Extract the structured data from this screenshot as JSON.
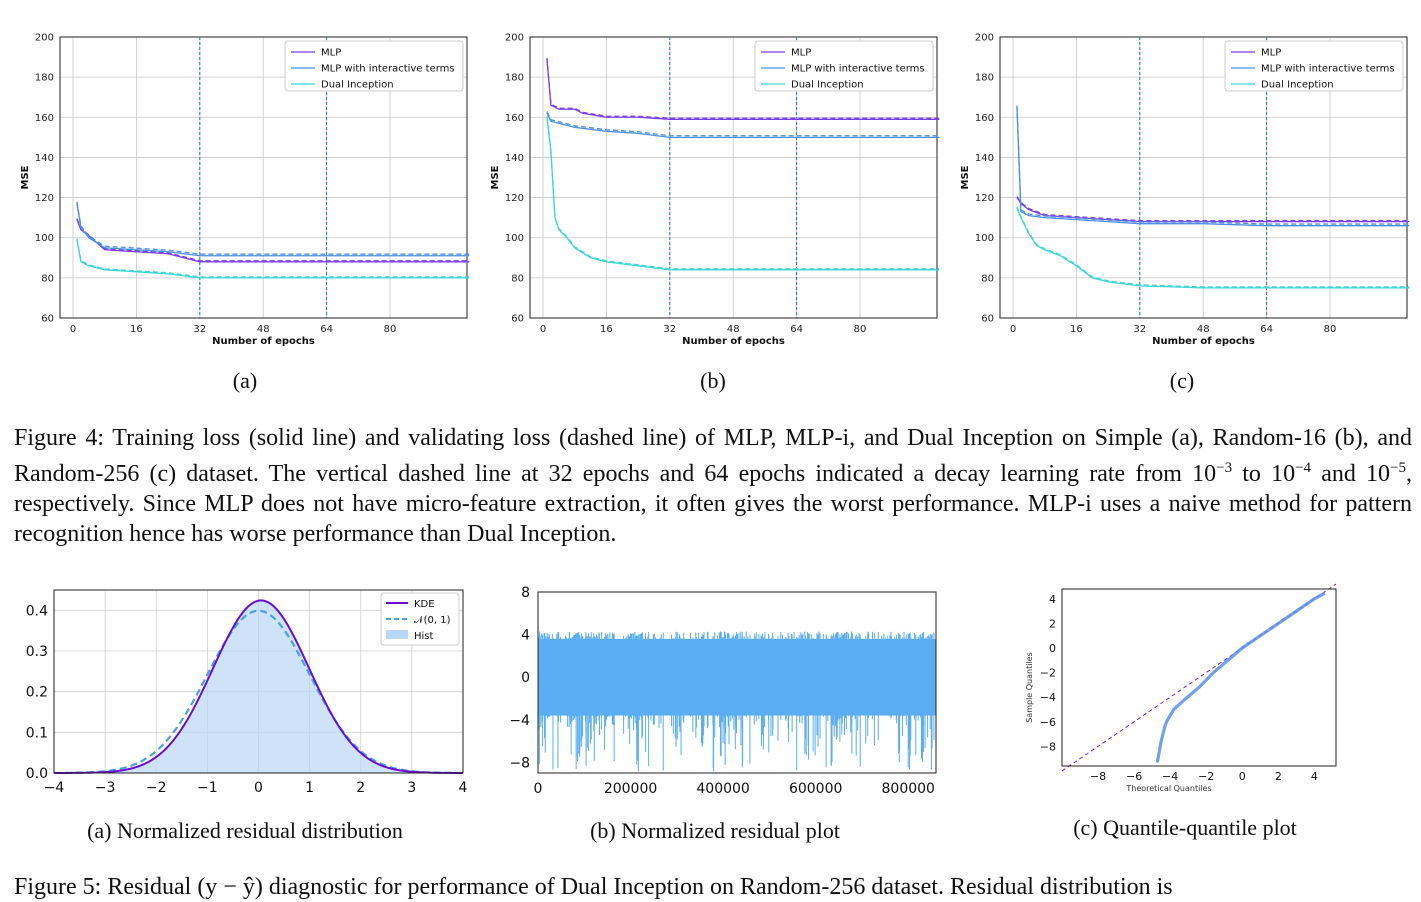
{
  "figure4": {
    "caption_parts": [
      "Figure 4: Training loss (solid line) and validating loss (dashed line) of MLP, MLP-i, and Dual Inception on Simple (a), Random-16 (b), and Random-256 (c) dataset. The vertical dashed line at 32 epochs and 64 epochs indicated a decay learning rate from ",
      "10",
      "−3",
      " to ",
      "10",
      "−4",
      " and ",
      "10",
      "−5",
      ", respectively. Since MLP does not have micro-feature extraction, it often gives the worst performance. MLP-i uses a naive method for pattern recognition hence has worse performance than Dual Inception."
    ],
    "ylabel": "MSE",
    "xlabel": "Number of epochs",
    "legend": [
      "MLP",
      "MLP with interactive terms",
      "Dual Inception"
    ],
    "colors": {
      "mlp": "#7b3ff2",
      "mlpi": "#4a90e2",
      "dual": "#3ed6d6",
      "vline": "#1f77b4"
    }
  },
  "figure5": {
    "sublabels": [
      "(a) Normalized residual distribution",
      "(b) Normalized residual plot",
      "(c) Quantile-quantile plot"
    ],
    "caption_start": "Figure 5: Residual (y − ŷ) diagnostic for performance of Dual Inception on Random-256 dataset. Residual distribution is",
    "kde_legend": [
      "KDE",
      "𝒩(0, 1)",
      "Hist"
    ],
    "qq_xlabel": "Theoretical Quantiles",
    "qq_ylabel": "Sample Quantiles"
  },
  "chart_data": [
    {
      "type": "line",
      "label": "(a)",
      "xlabel": "Number of epochs",
      "ylabel": "MSE",
      "ylim": [
        60,
        200
      ],
      "x_ticks": [
        0,
        16,
        32,
        48,
        64,
        80
      ],
      "y_ticks": [
        60,
        80,
        100,
        120,
        140,
        160,
        180,
        200
      ],
      "vlines": [
        32,
        64
      ],
      "grid": true,
      "legend": "top-right",
      "series": [
        {
          "name": "MLP",
          "x": [
            1,
            2,
            4,
            8,
            16,
            24,
            32,
            48,
            64,
            80,
            100
          ],
          "y": [
            109,
            104,
            101,
            94,
            93,
            92,
            88,
            88,
            88,
            88,
            88
          ]
        },
        {
          "name": "MLP with interactive terms",
          "x": [
            1,
            2,
            4,
            8,
            16,
            24,
            32,
            48,
            64,
            80,
            100
          ],
          "y": [
            117,
            105,
            100,
            95,
            94,
            93,
            91,
            91,
            91,
            91,
            91
          ]
        },
        {
          "name": "Dual Inception",
          "x": [
            1,
            2,
            4,
            8,
            16,
            24,
            32,
            48,
            64,
            80,
            100
          ],
          "y": [
            99,
            88,
            86,
            84,
            83,
            82,
            80,
            80,
            80,
            80,
            80
          ]
        }
      ]
    },
    {
      "type": "line",
      "label": "(b)",
      "xlabel": "Number of epochs",
      "ylabel": "MSE",
      "ylim": [
        60,
        200
      ],
      "x_ticks": [
        0,
        16,
        32,
        48,
        64,
        80
      ],
      "y_ticks": [
        60,
        80,
        100,
        120,
        140,
        160,
        180,
        200
      ],
      "vlines": [
        32,
        64
      ],
      "grid": true,
      "legend": "top-right",
      "series": [
        {
          "name": "MLP",
          "x": [
            1,
            2,
            4,
            8,
            10,
            16,
            24,
            32,
            48,
            64,
            80,
            100
          ],
          "y": [
            189,
            166,
            164,
            164,
            162,
            160,
            160,
            159,
            159,
            159,
            159,
            159
          ]
        },
        {
          "name": "MLP with interactive terms",
          "x": [
            1,
            2,
            4,
            8,
            16,
            24,
            32,
            48,
            64,
            80,
            100
          ],
          "y": [
            162,
            158,
            157,
            155,
            153,
            152,
            150,
            150,
            150,
            150,
            150
          ]
        },
        {
          "name": "Dual Inception",
          "x": [
            1,
            2,
            3,
            4,
            6,
            8,
            12,
            16,
            24,
            32,
            48,
            64,
            80,
            100
          ],
          "y": [
            160,
            143,
            110,
            104,
            100,
            95,
            90,
            88,
            86,
            84,
            84,
            84,
            84,
            84
          ]
        }
      ]
    },
    {
      "type": "line",
      "label": "(c)",
      "xlabel": "Number of epochs",
      "ylabel": "MSE",
      "ylim": [
        60,
        200
      ],
      "x_ticks": [
        0,
        16,
        32,
        48,
        64,
        80
      ],
      "y_ticks": [
        60,
        80,
        100,
        120,
        140,
        160,
        180,
        200
      ],
      "vlines": [
        32,
        64
      ],
      "grid": true,
      "legend": "top-right",
      "series": [
        {
          "name": "MLP",
          "x": [
            1,
            2,
            4,
            8,
            16,
            24,
            32,
            48,
            64,
            80,
            100
          ],
          "y": [
            120,
            117,
            114,
            111,
            110,
            109,
            108,
            108,
            108,
            108,
            108
          ]
        },
        {
          "name": "MLP with interactive terms",
          "x": [
            1,
            2,
            4,
            8,
            16,
            24,
            32,
            48,
            64,
            80,
            100
          ],
          "y": [
            165,
            113,
            111,
            110,
            109,
            108,
            107,
            107,
            106,
            106,
            106
          ]
        },
        {
          "name": "Dual Inception",
          "x": [
            1,
            2,
            4,
            6,
            8,
            12,
            16,
            20,
            24,
            32,
            48,
            64,
            80,
            100
          ],
          "y": [
            115,
            110,
            102,
            96,
            94,
            91,
            86,
            80,
            78,
            76,
            75,
            75,
            75,
            75
          ]
        }
      ]
    },
    {
      "type": "area",
      "label": "(a) Normalized residual distribution",
      "xlim": [
        -4,
        4
      ],
      "ylim": [
        0,
        0.45
      ],
      "x_ticks": [
        -4,
        -3,
        -2,
        -1,
        0,
        1,
        2,
        3,
        4
      ],
      "y_ticks": [
        0.0,
        0.1,
        0.2,
        0.3,
        0.4
      ],
      "x_tick_labels": [
        "−4",
        "−3",
        "−2",
        "−1",
        "0",
        "1",
        "2",
        "3",
        "4"
      ],
      "y_tick_labels": [
        "0.0",
        "0.1",
        "0.2",
        "0.3",
        "0.4"
      ],
      "grid": true,
      "legend": "top-right",
      "series": [
        {
          "name": "KDE",
          "mean": 0.05,
          "std": 0.94
        },
        {
          "name": "𝒩(0, 1)",
          "mean": 0,
          "std": 1
        },
        {
          "name": "Hist",
          "mean": 0.05,
          "std": 0.94
        }
      ]
    },
    {
      "type": "line",
      "label": "(b) Normalized residual plot",
      "xlim": [
        0,
        860000
      ],
      "ylim": [
        -9,
        8
      ],
      "x_ticks": [
        0,
        200000,
        400000,
        600000,
        800000
      ],
      "y_ticks": [
        -8,
        -4,
        0,
        4,
        8
      ],
      "x_tick_labels": [
        "0",
        "200000",
        "400000",
        "600000",
        "800000"
      ],
      "y_tick_labels": [
        "−8",
        "−4",
        "0",
        "4",
        "8"
      ],
      "band": {
        "upper": 3.6,
        "lower": -3.6,
        "max": 4.3,
        "min": -9.0
      }
    },
    {
      "type": "scatter",
      "label": "(c) Quantile-quantile plot",
      "xlabel": "Theoretical Quantiles",
      "ylabel": "Sample Quantiles",
      "xlim": [
        -10,
        5.2
      ],
      "ylim": [
        -9.6,
        4.8
      ],
      "x_ticks": [
        -8,
        -6,
        -4,
        -2,
        0,
        2,
        4
      ],
      "y_ticks": [
        -8,
        -6,
        -4,
        -2,
        0,
        2,
        4
      ],
      "x_tick_labels": [
        "−8",
        "−6",
        "−4",
        "−2",
        "0",
        "2",
        "4"
      ],
      "y_tick_labels": [
        "−8",
        "−6",
        "−4",
        "−2",
        "0",
        "2",
        "4"
      ],
      "reference_line": [
        [
          -10,
          -10
        ],
        [
          5.2,
          5.2
        ]
      ],
      "points": [
        [
          -4.7,
          -9.2
        ],
        [
          -4.6,
          -8.4
        ],
        [
          -4.5,
          -7.6
        ],
        [
          -4.4,
          -7.0
        ],
        [
          -4.3,
          -6.4
        ],
        [
          -4.2,
          -6.0
        ],
        [
          -4.0,
          -5.5
        ],
        [
          -3.8,
          -5.0
        ],
        [
          -3.5,
          -4.6
        ],
        [
          -3.2,
          -4.2
        ],
        [
          -2.8,
          -3.7
        ],
        [
          -2.4,
          -3.2
        ],
        [
          -2.0,
          -2.6
        ],
        [
          -1.6,
          -2.0
        ],
        [
          -1.2,
          -1.5
        ],
        [
          -0.8,
          -1.0
        ],
        [
          -0.4,
          -0.5
        ],
        [
          0,
          0
        ],
        [
          0.5,
          0.5
        ],
        [
          1.0,
          1.0
        ],
        [
          1.5,
          1.5
        ],
        [
          2.0,
          2.0
        ],
        [
          2.5,
          2.5
        ],
        [
          3.0,
          3.0
        ],
        [
          3.5,
          3.5
        ],
        [
          4.0,
          4.0
        ],
        [
          4.5,
          4.4
        ]
      ]
    }
  ]
}
